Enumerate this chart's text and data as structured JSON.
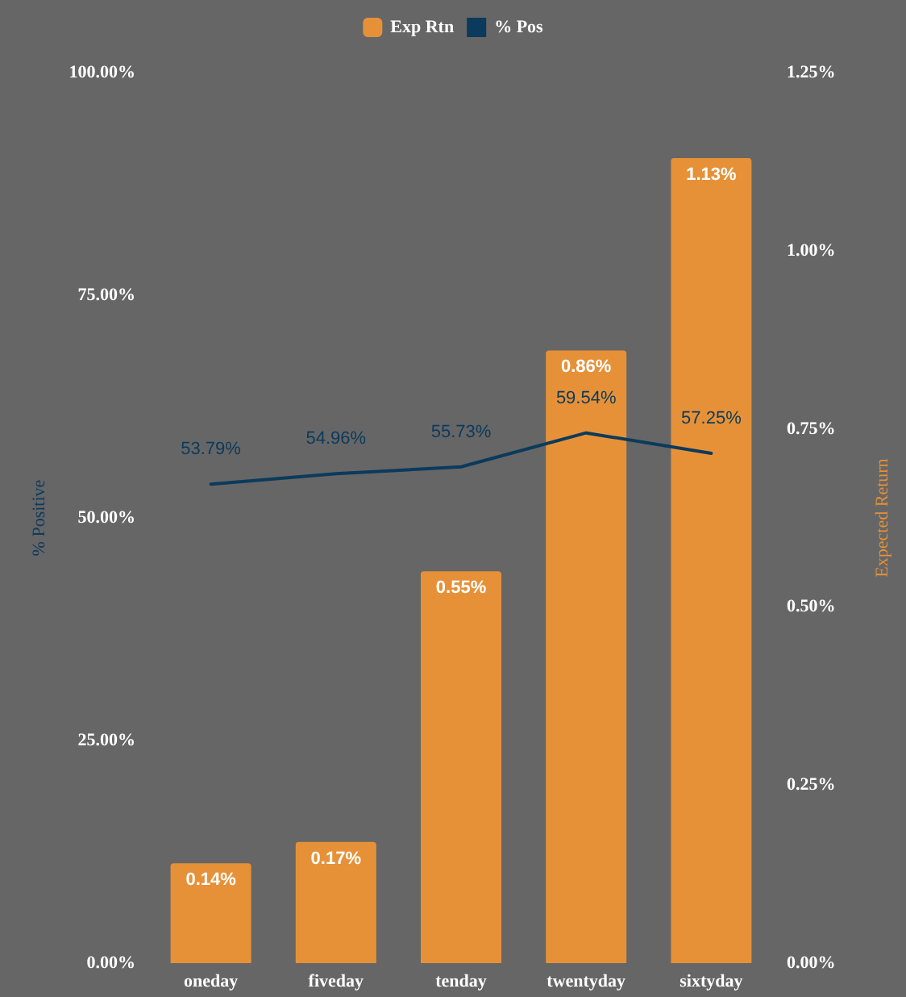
{
  "chart_data": {
    "type": "bar",
    "categories": [
      "oneday",
      "fiveday",
      "tenday",
      "twentyday",
      "sixtyday"
    ],
    "series": [
      {
        "name": "Exp Rtn",
        "axis": "y2",
        "color": "#e69138",
        "values": [
          0.14,
          0.17,
          0.55,
          0.86,
          1.13
        ],
        "value_labels": [
          "0.14%",
          "0.17%",
          "0.55%",
          "0.86%",
          "1.13%"
        ]
      },
      {
        "name": "% Pos",
        "type": "line",
        "color": "#0b3a5c",
        "values": [
          53.79,
          54.96,
          55.73,
          59.54,
          57.25
        ],
        "value_labels": [
          "53.79%",
          "54.96%",
          "55.73%",
          "59.54%",
          "57.25%"
        ]
      }
    ],
    "ylabel": "% Positive",
    "y2label": "Expected Return",
    "ylim": [
      0,
      100
    ],
    "yticks": [
      {
        "value": 0,
        "label": "0.00%"
      },
      {
        "value": 25,
        "label": "25.00%"
      },
      {
        "value": 50,
        "label": "50.00%"
      },
      {
        "value": 75,
        "label": "75.00%"
      },
      {
        "value": 100,
        "label": "100.00%"
      }
    ],
    "y2lim": [
      0,
      1.25
    ],
    "y2ticks": [
      {
        "value": 0,
        "label": "0.00%"
      },
      {
        "value": 0.25,
        "label": "0.25%"
      },
      {
        "value": 0.5,
        "label": "0.50%"
      },
      {
        "value": 0.75,
        "label": "0.75%"
      },
      {
        "value": 1,
        "label": "1.00%"
      },
      {
        "value": 1.25,
        "label": "1.25%"
      }
    ],
    "legend": "top",
    "grid": false,
    "marker": "none",
    "line_style": "solid"
  }
}
